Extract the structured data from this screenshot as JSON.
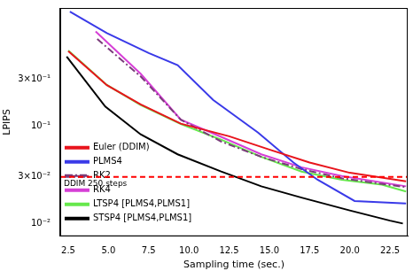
{
  "chart_data": {
    "type": "line",
    "x_label": "Sampling time (sec.)",
    "y_label": "LPIPS",
    "log": "y",
    "grid": false,
    "legend": "upper right",
    "xlim": [
      2.0,
      23.6
    ],
    "ylim": [
      0.0074,
      1.6
    ],
    "xticks": [
      2.5,
      {
        "value": 5,
        "label": "5.0"
      },
      7.5,
      {
        "value": 10,
        "label": "10.0"
      },
      12.5,
      {
        "value": 15,
        "label": "15.0"
      },
      17.5,
      {
        "value": 20,
        "label": "20.0"
      },
      22.5
    ],
    "yticks": [
      {
        "value": 0.01,
        "label": "10⁻²"
      },
      {
        "value": 0.03,
        "label": "3×10⁻²"
      },
      {
        "value": 0.1,
        "label": "10⁻¹"
      },
      {
        "value": 0.3,
        "label": "3×10⁻¹"
      }
    ],
    "series": [
      {
        "name": "Euler (DDIM)",
        "color": "#e8141c",
        "line_style": "solid",
        "x": [
          2.5,
          4.9,
          7.0,
          9.5,
          12.5,
          15.0,
          17.5,
          20.0,
          23.5
        ],
        "values": [
          0.58,
          0.26,
          0.165,
          0.105,
          0.078,
          0.057,
          0.042,
          0.033,
          0.027
        ]
      },
      {
        "name": "PLMS4",
        "color": "#3a3ae8",
        "line_style": "solid",
        "x": [
          2.6,
          4.9,
          7.5,
          9.3,
          11.5,
          14.3,
          16.5,
          18.0,
          20.3,
          23.5
        ],
        "values": [
          1.47,
          0.885,
          0.554,
          0.416,
          0.184,
          0.085,
          0.042,
          0.028,
          0.017,
          0.016
        ]
      },
      {
        "name": "RK2",
        "color": "#7a3c7a",
        "line_style": "dashdot",
        "x": [
          4.3,
          7.0,
          9.5,
          12.0,
          14.5,
          17.0,
          19.5,
          23.5
        ],
        "values": [
          0.77,
          0.319,
          0.115,
          0.069,
          0.048,
          0.036,
          0.029,
          0.0235
        ]
      },
      {
        "name": "RK4",
        "color": "#d63fd6",
        "line_style": "solid",
        "x": [
          4.2,
          7.0,
          9.5,
          12.0,
          14.5,
          17.0,
          19.5,
          23.5
        ],
        "values": [
          0.92,
          0.34,
          0.115,
          0.077,
          0.051,
          0.0376,
          0.0306,
          0.024
        ]
      },
      {
        "name": "LTSP4 [PLMS4,PLMS1]",
        "color": "#66e84c",
        "line_style": "solid",
        "x": [
          2.5,
          4.9,
          7.0,
          9.5,
          12.0,
          14.5,
          17.0,
          19.5,
          22.0,
          23.5
        ],
        "values": [
          0.589,
          0.261,
          0.163,
          0.104,
          0.072,
          0.048,
          0.034,
          0.028,
          0.025,
          0.0212
        ]
      },
      {
        "name": "STSP4 [PLMS4,PLMS1]",
        "color": "#000000",
        "line_style": "solid",
        "x": [
          2.4,
          4.8,
          7.0,
          9.3,
          12.0,
          14.5,
          17.0,
          20.0,
          22.5,
          23.3
        ],
        "values": [
          0.51,
          0.157,
          0.0816,
          0.051,
          0.034,
          0.024,
          0.0184,
          0.0136,
          0.0107,
          0.01
        ]
      }
    ],
    "reference_line": {
      "label": "DDIM 250 steps",
      "value": 0.03,
      "color": "#ff0000",
      "line_style": "dashed"
    }
  }
}
